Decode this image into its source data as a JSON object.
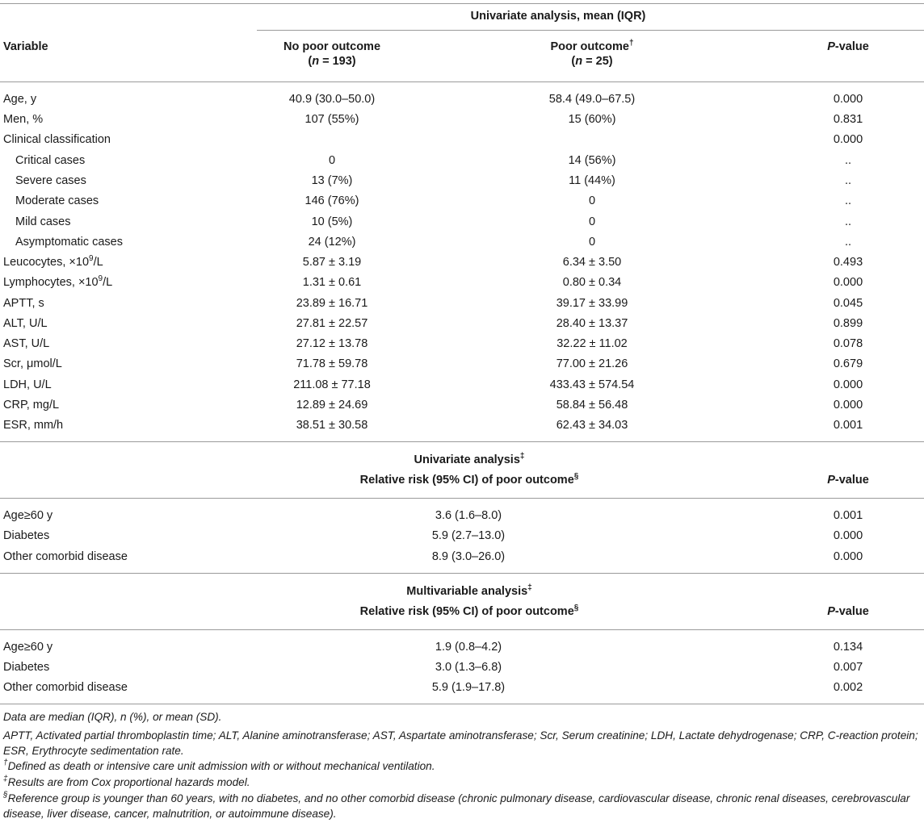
{
  "header": {
    "group_title": "Univariate analysis, mean (IQR)",
    "variable_label": "Variable",
    "col_no_poor": "No poor outcome",
    "col_no_poor_n_prefix": "(",
    "col_no_poor_n_var": "n",
    "col_no_poor_n_rest": " = 193)",
    "col_poor": "Poor outcome",
    "col_poor_mark": "†",
    "col_poor_n_prefix": "(",
    "col_poor_n_var": "n",
    "col_poor_n_rest": " = 25)",
    "pvalue_p": "P",
    "pvalue_rest": "-value"
  },
  "rows": [
    {
      "v": "Age, y",
      "a": "40.9 (30.0–50.0)",
      "b": "58.4 (49.0–67.5)",
      "p": "0.000"
    },
    {
      "v": "Men, %",
      "a": "107 (55%)",
      "b": "15 (60%)",
      "p": "0.831"
    },
    {
      "v": "Clinical classification",
      "a": "",
      "b": "",
      "p": "0.000"
    },
    {
      "v": "Critical cases",
      "a": "0",
      "b": "14 (56%)",
      "p": ".."
    },
    {
      "v": "Severe cases",
      "a": "13 (7%)",
      "b": "11 (44%)",
      "p": ".."
    },
    {
      "v": "Moderate cases",
      "a": "146 (76%)",
      "b": "0",
      "p": ".."
    },
    {
      "v": "Mild cases",
      "a": "10 (5%)",
      "b": "0",
      "p": ".."
    },
    {
      "v": "Asymptomatic cases",
      "a": "24 (12%)",
      "b": "0",
      "p": ".."
    },
    {
      "v_pre": "Leucocytes, ×10",
      "v_sup": "9",
      "v_post": "/L",
      "a": "5.87 ± 3.19",
      "b": "6.34 ± 3.50",
      "p": "0.493"
    },
    {
      "v_pre": "Lymphocytes, ×10",
      "v_sup": "9",
      "v_post": "/L",
      "a": "1.31 ± 0.61",
      "b": "0.80 ± 0.34",
      "p": "0.000"
    },
    {
      "v": "APTT, s",
      "a": "23.89 ± 16.71",
      "b": "39.17 ± 33.99",
      "p": "0.045"
    },
    {
      "v": "ALT, U/L",
      "a": "27.81 ± 22.57",
      "b": "28.40 ± 13.37",
      "p": "0.899"
    },
    {
      "v": "AST, U/L",
      "a": "27.12 ± 13.78",
      "b": "32.22 ± 11.02",
      "p": "0.078"
    },
    {
      "v": "Scr, μmol/L",
      "a": "71.78 ± 59.78",
      "b": "77.00 ± 21.26",
      "p": "0.679"
    },
    {
      "v": "LDH, U/L",
      "a": "211.08 ± 77.18",
      "b": "433.43 ± 574.54",
      "p": "0.000"
    },
    {
      "v": "CRP, mg/L",
      "a": "12.89 ± 24.69",
      "b": "58.84 ± 56.48",
      "p": "0.000"
    },
    {
      "v": "ESR, mm/h",
      "a": "38.51 ± 30.58",
      "b": "62.43 ± 34.03",
      "p": "0.001"
    }
  ],
  "univariate": {
    "title": "Univariate analysis",
    "title_mark": "‡",
    "subtitle": "Relative risk (95% CI) of poor outcome",
    "subtitle_mark": "§",
    "pvalue_p": "P",
    "pvalue_rest": "-value",
    "rows": [
      {
        "v": "Age≥60 y",
        "rr": "3.6 (1.6–8.0)",
        "p": "0.001"
      },
      {
        "v": "Diabetes",
        "rr": "5.9 (2.7–13.0)",
        "p": "0.000"
      },
      {
        "v": "Other comorbid disease",
        "rr": "8.9 (3.0–26.0)",
        "p": "0.000"
      }
    ]
  },
  "multivariable": {
    "title": "Multivariable analysis",
    "title_mark": "‡",
    "subtitle": "Relative risk (95% CI) of poor outcome",
    "subtitle_mark": "§",
    "pvalue_p": "P",
    "pvalue_rest": "-value",
    "rows": [
      {
        "v": "Age≥60 y",
        "rr": "1.9 (0.8–4.2)",
        "p": "0.134"
      },
      {
        "v": "Diabetes",
        "rr": "3.0 (1.3–6.8)",
        "p": "0.007"
      },
      {
        "v": "Other comorbid disease",
        "rr": "5.9 (1.9–17.8)",
        "p": "0.002"
      }
    ]
  },
  "footnotes": {
    "data_note": "Data are median (IQR), n (%), or mean (SD).",
    "abbrev": "APTT, Activated partial thromboplastin time; ALT, Alanine aminotransferase; AST, Aspartate aminotransferase; Scr, Serum creatinine; LDH, Lactate dehydrogenase; CRP, C-reaction protein; ESR, Erythrocyte sedimentation rate.",
    "dagger_mark": "†",
    "dagger": "Defined as death or intensive care unit admission with or without mechanical ventilation.",
    "ddagger_mark": "‡",
    "ddagger": "Results are from Cox proportional hazards model.",
    "section_mark": "§",
    "section": "Reference group is younger than 60 years, with no diabetes, and no other comorbid disease (chronic pulmonary disease, cardiovascular disease, chronic renal diseases, cerebrovascular disease, liver disease, cancer, malnutrition, or autoimmune disease)."
  }
}
